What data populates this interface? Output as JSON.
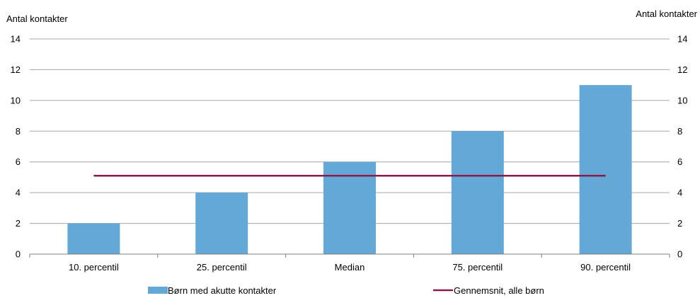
{
  "chart_data": {
    "type": "bar",
    "categories": [
      "10. percentil",
      "25. percentil",
      "Median",
      "75. percentil",
      "90. percentil"
    ],
    "series": [
      {
        "name": "Børn med akutte kontakter",
        "type": "bar",
        "values": [
          2,
          4,
          6,
          8,
          11
        ],
        "color": "#63a8d6"
      },
      {
        "name": "Gennemsnit, alle børn",
        "type": "line",
        "values": [
          5.1,
          5.1,
          5.1,
          5.1,
          5.1
        ],
        "color": "#8b1a4a"
      }
    ],
    "ylabel_left": "Antal kontakter",
    "ylabel_right": "Antal kontakter",
    "ylim": [
      0,
      14
    ],
    "yticks": [
      0,
      2,
      4,
      6,
      8,
      10,
      12,
      14
    ],
    "grid": true,
    "legend_position": "bottom"
  }
}
